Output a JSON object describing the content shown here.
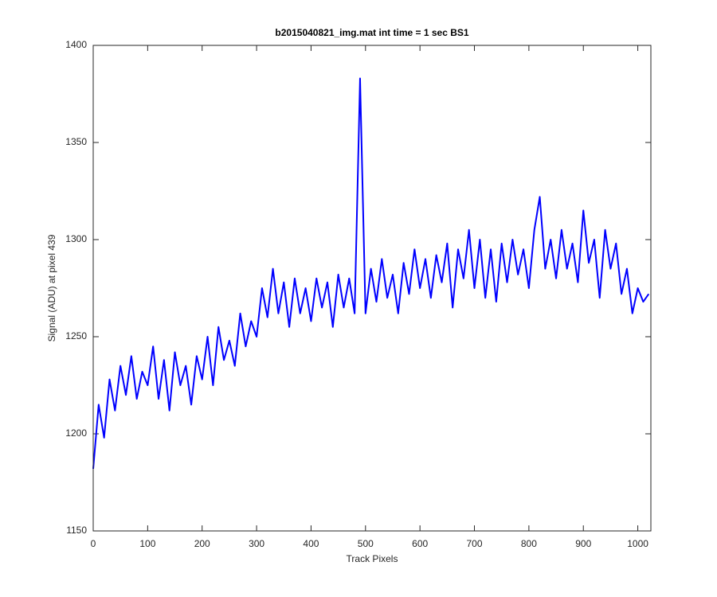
{
  "chart_data": {
    "type": "line",
    "title": "b2015040821_img.mat int time = 1 sec   BS1",
    "x_label": "Track Pixels",
    "y_label": "Signal (ADU) at pixel 439",
    "x": [
      0,
      10,
      20,
      30,
      40,
      50,
      60,
      70,
      80,
      90,
      100,
      110,
      120,
      130,
      140,
      150,
      160,
      170,
      180,
      190,
      200,
      210,
      220,
      230,
      240,
      250,
      260,
      270,
      280,
      290,
      300,
      310,
      320,
      330,
      340,
      350,
      360,
      370,
      380,
      390,
      400,
      410,
      420,
      430,
      440,
      450,
      460,
      470,
      480,
      490,
      500,
      510,
      520,
      530,
      540,
      550,
      560,
      570,
      580,
      590,
      600,
      610,
      620,
      630,
      640,
      650,
      660,
      670,
      680,
      690,
      700,
      710,
      720,
      730,
      740,
      750,
      760,
      770,
      780,
      790,
      800,
      810,
      820,
      830,
      840,
      850,
      860,
      870,
      880,
      890,
      900,
      910,
      920,
      930,
      940,
      950,
      960,
      970,
      980,
      990,
      1000,
      1010,
      1020
    ],
    "series": [
      {
        "color": "#0000ff",
        "values": [
          1182,
          1215,
          1198,
          1228,
          1212,
          1235,
          1220,
          1240,
          1218,
          1232,
          1225,
          1245,
          1218,
          1238,
          1212,
          1242,
          1225,
          1235,
          1215,
          1240,
          1228,
          1250,
          1225,
          1255,
          1238,
          1248,
          1235,
          1262,
          1245,
          1258,
          1250,
          1275,
          1260,
          1285,
          1262,
          1278,
          1255,
          1280,
          1262,
          1275,
          1258,
          1280,
          1265,
          1278,
          1255,
          1282,
          1265,
          1280,
          1262,
          1383,
          1262,
          1285,
          1268,
          1290,
          1270,
          1282,
          1262,
          1288,
          1272,
          1295,
          1275,
          1290,
          1270,
          1292,
          1278,
          1298,
          1265,
          1295,
          1280,
          1305,
          1275,
          1300,
          1270,
          1295,
          1268,
          1298,
          1278,
          1300,
          1282,
          1295,
          1275,
          1305,
          1322,
          1285,
          1300,
          1280,
          1305,
          1285,
          1298,
          1278,
          1315,
          1288,
          1300,
          1270,
          1305,
          1285,
          1298,
          1272,
          1285,
          1262,
          1275,
          1268,
          1272
        ]
      }
    ],
    "xlim": [
      0,
      1024
    ],
    "ylim": [
      1150,
      1400
    ],
    "xticks": [
      0,
      100,
      200,
      300,
      400,
      500,
      600,
      700,
      800,
      900,
      1000
    ],
    "yticks": [
      1150,
      1200,
      1250,
      1300,
      1350,
      1400
    ]
  }
}
